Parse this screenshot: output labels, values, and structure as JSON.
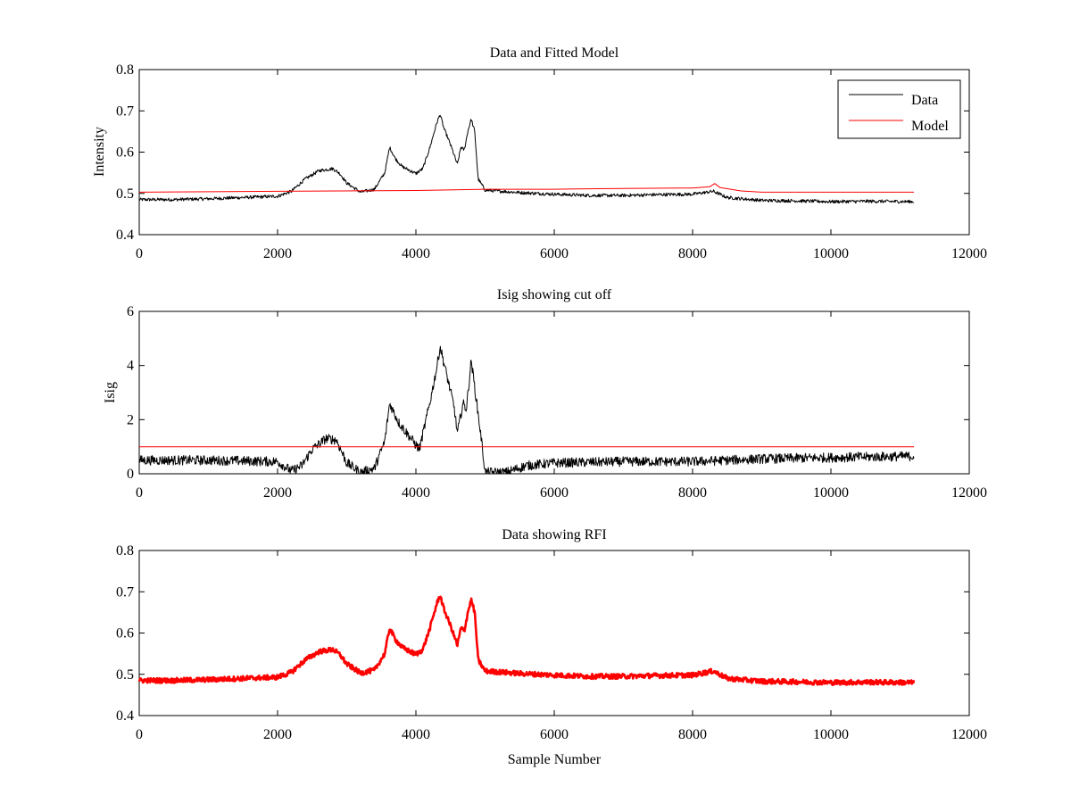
{
  "chart_data": [
    {
      "type": "line",
      "title": "Data and Fitted Model",
      "xlabel": "",
      "ylabel": "Intensity",
      "xlim": [
        0,
        12000
      ],
      "ylim": [
        0.4,
        0.8
      ],
      "xticks": [
        0,
        2000,
        4000,
        6000,
        8000,
        10000,
        12000
      ],
      "yticks": [
        0.4,
        0.5,
        0.6,
        0.7,
        0.8
      ],
      "ytick_labels": [
        "0.4",
        "0.5",
        "0.6",
        "0.7",
        "0.8"
      ],
      "grid": false,
      "legend": "top-right",
      "colors": {
        "Data": "#000000",
        "Model": "#ff0000"
      },
      "series": [
        {
          "name": "Data",
          "color": "#000000",
          "noise": 0.004,
          "points": [
            [
              0,
              0.485
            ],
            [
              500,
              0.485
            ],
            [
              1000,
              0.487
            ],
            [
              1500,
              0.49
            ],
            [
              2000,
              0.493
            ],
            [
              2200,
              0.505
            ],
            [
              2400,
              0.535
            ],
            [
              2600,
              0.555
            ],
            [
              2800,
              0.56
            ],
            [
              2900,
              0.548
            ],
            [
              3000,
              0.525
            ],
            [
              3200,
              0.503
            ],
            [
              3400,
              0.51
            ],
            [
              3550,
              0.55
            ],
            [
              3620,
              0.612
            ],
            [
              3700,
              0.585
            ],
            [
              3800,
              0.565
            ],
            [
              4000,
              0.548
            ],
            [
              4100,
              0.56
            ],
            [
              4200,
              0.61
            ],
            [
              4300,
              0.67
            ],
            [
              4350,
              0.692
            ],
            [
              4400,
              0.66
            ],
            [
              4500,
              0.618
            ],
            [
              4600,
              0.57
            ],
            [
              4650,
              0.612
            ],
            [
              4700,
              0.605
            ],
            [
              4750,
              0.65
            ],
            [
              4800,
              0.68
            ],
            [
              4850,
              0.65
            ],
            [
              4900,
              0.535
            ],
            [
              5000,
              0.508
            ],
            [
              5500,
              0.502
            ],
            [
              6000,
              0.498
            ],
            [
              6500,
              0.495
            ],
            [
              7000,
              0.495
            ],
            [
              7500,
              0.497
            ],
            [
              8000,
              0.498
            ],
            [
              8300,
              0.505
            ],
            [
              8500,
              0.49
            ],
            [
              9000,
              0.483
            ],
            [
              9500,
              0.482
            ],
            [
              10000,
              0.48
            ],
            [
              10500,
              0.481
            ],
            [
              11200,
              0.48
            ]
          ]
        },
        {
          "name": "Model",
          "color": "#ff0000",
          "noise": 0,
          "points": [
            [
              0,
              0.503
            ],
            [
              2000,
              0.505
            ],
            [
              4000,
              0.507
            ],
            [
              5000,
              0.51
            ],
            [
              6000,
              0.51
            ],
            [
              7000,
              0.512
            ],
            [
              8000,
              0.513
            ],
            [
              8250,
              0.516
            ],
            [
              8320,
              0.524
            ],
            [
              8400,
              0.514
            ],
            [
              8700,
              0.506
            ],
            [
              9000,
              0.503
            ],
            [
              11200,
              0.503
            ]
          ]
        }
      ]
    },
    {
      "type": "line",
      "title": "Isig showing cut off",
      "xlabel": "",
      "ylabel": "Isig",
      "xlim": [
        0,
        12000
      ],
      "ylim": [
        0,
        6
      ],
      "xticks": [
        0,
        2000,
        4000,
        6000,
        8000,
        10000,
        12000
      ],
      "yticks": [
        0,
        2,
        4,
        6
      ],
      "ytick_labels": [
        "0",
        "2",
        "4",
        "6"
      ],
      "grid": false,
      "series": [
        {
          "color": "#000000",
          "noise": 0.18,
          "points": [
            [
              0,
              0.5
            ],
            [
              1000,
              0.5
            ],
            [
              2000,
              0.45
            ],
            [
              2200,
              0.1
            ],
            [
              2350,
              0.3
            ],
            [
              2500,
              0.9
            ],
            [
              2700,
              1.3
            ],
            [
              2850,
              1.25
            ],
            [
              3000,
              0.4
            ],
            [
              3200,
              0.05
            ],
            [
              3400,
              0.2
            ],
            [
              3550,
              1.2
            ],
            [
              3620,
              2.6
            ],
            [
              3750,
              1.9
            ],
            [
              3900,
              1.4
            ],
            [
              4050,
              0.9
            ],
            [
              4200,
              2.6
            ],
            [
              4300,
              3.9
            ],
            [
              4350,
              4.7
            ],
            [
              4450,
              3.6
            ],
            [
              4550,
              2.5
            ],
            [
              4600,
              1.5
            ],
            [
              4680,
              2.6
            ],
            [
              4730,
              2.4
            ],
            [
              4800,
              4.2
            ],
            [
              4850,
              3.2
            ],
            [
              4950,
              1.2
            ],
            [
              5000,
              0.05
            ],
            [
              5300,
              0.05
            ],
            [
              5600,
              0.3
            ],
            [
              6000,
              0.4
            ],
            [
              7000,
              0.45
            ],
            [
              8000,
              0.45
            ],
            [
              9000,
              0.55
            ],
            [
              10000,
              0.6
            ],
            [
              11200,
              0.65
            ]
          ]
        },
        {
          "color": "#ff0000",
          "noise": 0,
          "points": [
            [
              0,
              1.0
            ],
            [
              11200,
              1.0
            ]
          ]
        }
      ]
    },
    {
      "type": "line",
      "title": "Data showing RFI",
      "xlabel": "Sample Number",
      "ylabel": "",
      "xlim": [
        0,
        12000
      ],
      "ylim": [
        0.4,
        0.8
      ],
      "xticks": [
        0,
        2000,
        4000,
        6000,
        8000,
        10000,
        12000
      ],
      "yticks": [
        0.4,
        0.5,
        0.6,
        0.7,
        0.8
      ],
      "ytick_labels": [
        "0.4",
        "0.5",
        "0.6",
        "0.7",
        "0.8"
      ],
      "grid": false,
      "series": [
        {
          "color": "#ff0000",
          "noise": 0.006,
          "thick": true,
          "points": [
            [
              0,
              0.485
            ],
            [
              500,
              0.485
            ],
            [
              1000,
              0.487
            ],
            [
              1500,
              0.49
            ],
            [
              2000,
              0.493
            ],
            [
              2200,
              0.505
            ],
            [
              2400,
              0.535
            ],
            [
              2600,
              0.555
            ],
            [
              2800,
              0.56
            ],
            [
              2900,
              0.548
            ],
            [
              3000,
              0.525
            ],
            [
              3200,
              0.503
            ],
            [
              3400,
              0.51
            ],
            [
              3550,
              0.55
            ],
            [
              3620,
              0.612
            ],
            [
              3700,
              0.585
            ],
            [
              3800,
              0.565
            ],
            [
              4000,
              0.548
            ],
            [
              4100,
              0.56
            ],
            [
              4200,
              0.61
            ],
            [
              4300,
              0.67
            ],
            [
              4350,
              0.692
            ],
            [
              4400,
              0.66
            ],
            [
              4500,
              0.618
            ],
            [
              4600,
              0.57
            ],
            [
              4650,
              0.612
            ],
            [
              4700,
              0.605
            ],
            [
              4750,
              0.65
            ],
            [
              4800,
              0.68
            ],
            [
              4850,
              0.65
            ],
            [
              4900,
              0.535
            ],
            [
              5000,
              0.508
            ],
            [
              5500,
              0.502
            ],
            [
              6000,
              0.498
            ],
            [
              6500,
              0.495
            ],
            [
              7000,
              0.495
            ],
            [
              7500,
              0.497
            ],
            [
              8000,
              0.498
            ],
            [
              8300,
              0.508
            ],
            [
              8500,
              0.49
            ],
            [
              9000,
              0.483
            ],
            [
              9500,
              0.482
            ],
            [
              10000,
              0.48
            ],
            [
              10500,
              0.481
            ],
            [
              11200,
              0.48
            ]
          ]
        }
      ]
    }
  ]
}
